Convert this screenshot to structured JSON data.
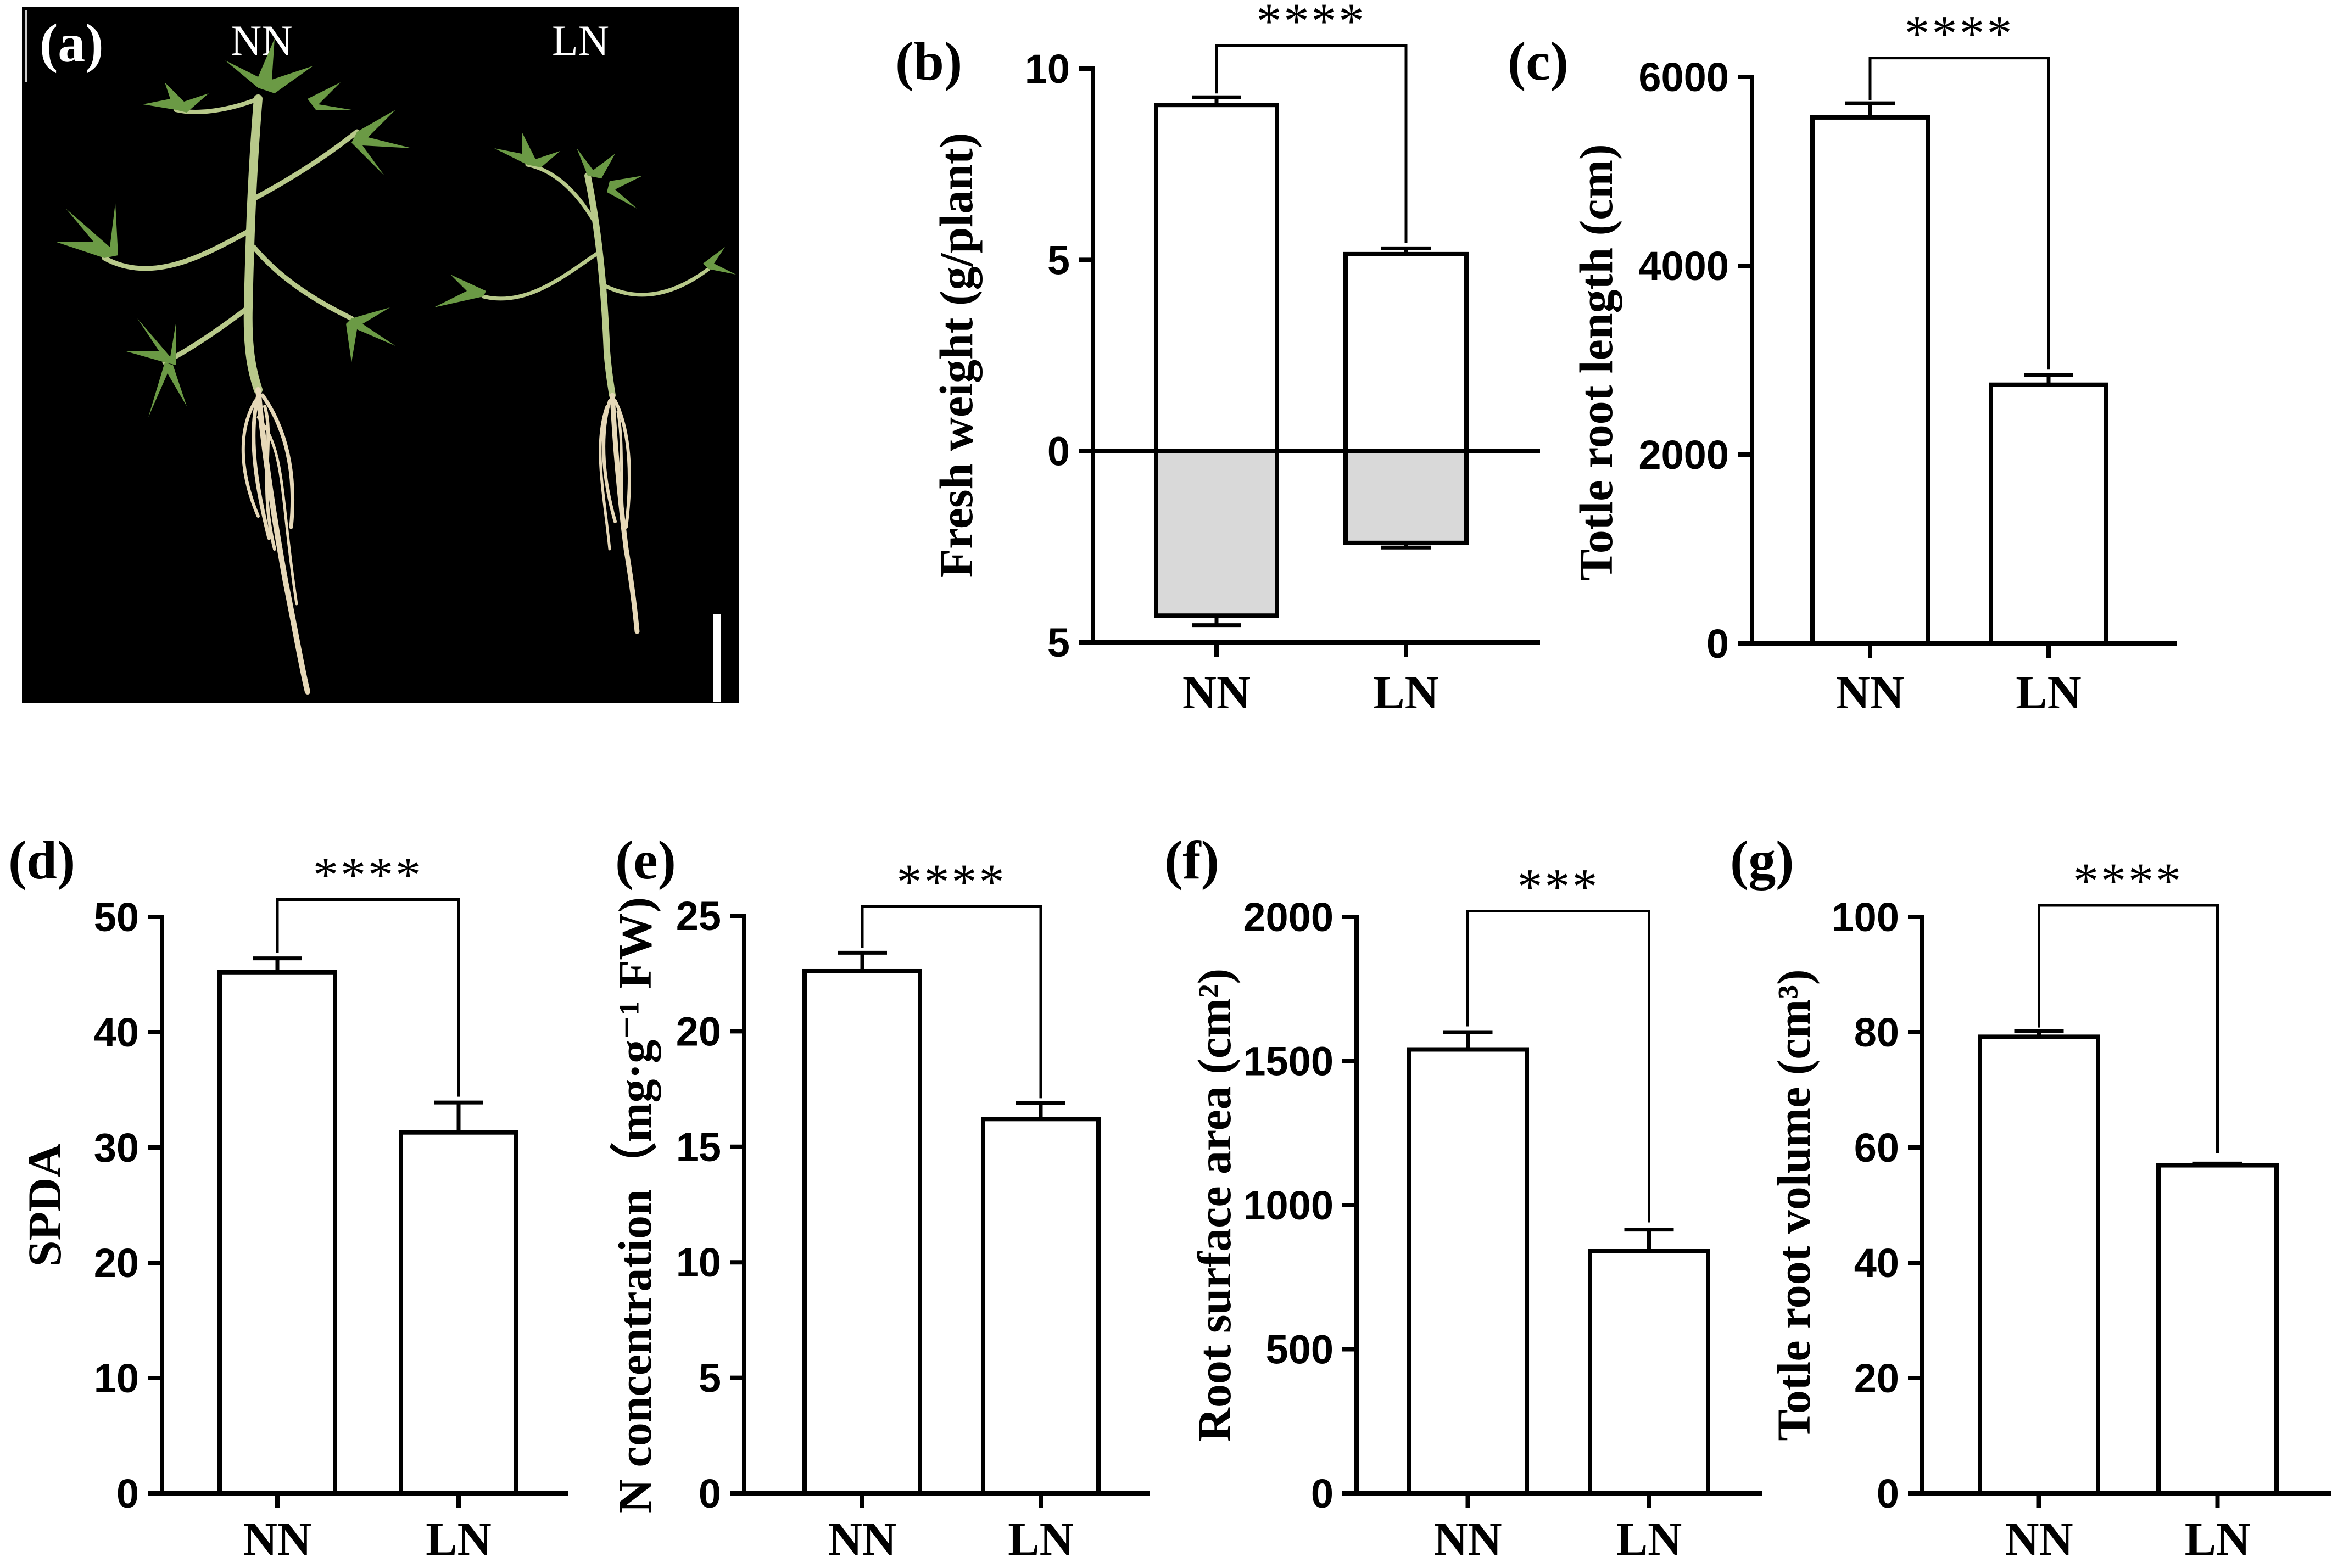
{
  "photo": {
    "panel_label": "(a)",
    "labels": [
      "NN",
      "LN"
    ]
  },
  "chart_data": [
    {
      "id": "b",
      "type": "bar",
      "panel_label": "(b)",
      "categories": [
        "NN",
        "LN"
      ],
      "series": [
        {
          "values": [
            9.05,
            5.15
          ],
          "errors": [
            0.2,
            0.15
          ],
          "color": "#ffffff"
        },
        {
          "values": [
            -4.3,
            -2.4
          ],
          "errors": [
            0.25,
            0.12
          ],
          "color": "#d9d9d9"
        }
      ],
      "ylabel": "Fresh weight (g/plant)",
      "ylim": [
        -5,
        10
      ],
      "yticks": [
        -5,
        0,
        5,
        10
      ],
      "ytick_labels": [
        "5",
        "0",
        "5",
        "10"
      ],
      "significance": "****",
      "bracket_from": [
        9.35,
        5.45
      ],
      "bracket_top": 10.6
    },
    {
      "id": "c",
      "type": "bar",
      "panel_label": "(c)",
      "categories": [
        "NN",
        "LN"
      ],
      "series": [
        {
          "values": [
            5570,
            2740
          ],
          "errors": [
            150,
            100
          ],
          "color": "#ffffff"
        }
      ],
      "ylabel": "Totle root length (cm)",
      "ylim": [
        0,
        6000
      ],
      "yticks": [
        0,
        2000,
        4000,
        6000
      ],
      "ytick_labels": [
        "0",
        "2000",
        "4000",
        "6000"
      ],
      "significance": "****",
      "bracket_from": [
        5750,
        2900
      ],
      "bracket_top": 6200
    },
    {
      "id": "d",
      "type": "bar",
      "panel_label": "(d)",
      "categories": [
        "NN",
        "LN"
      ],
      "series": [
        {
          "values": [
            45.2,
            31.3
          ],
          "errors": [
            1.2,
            2.6
          ],
          "color": "#ffffff"
        }
      ],
      "ylabel": "SPDA",
      "ylim": [
        0,
        50
      ],
      "yticks": [
        0,
        10,
        20,
        30,
        40,
        50
      ],
      "ytick_labels": [
        "0",
        "10",
        "20",
        "30",
        "40",
        "50"
      ],
      "significance": "****",
      "bracket_from": [
        46.9,
        34.4
      ],
      "bracket_top": 51.5
    },
    {
      "id": "e",
      "type": "bar",
      "panel_label": "(e)",
      "categories": [
        "NN",
        "LN"
      ],
      "series": [
        {
          "values": [
            22.6,
            16.2
          ],
          "errors": [
            0.8,
            0.7
          ],
          "color": "#ffffff"
        }
      ],
      "ylabel": "N concentration（mg·g⁻¹ FW)",
      "ylim": [
        0,
        25
      ],
      "yticks": [
        0,
        5,
        10,
        15,
        20,
        25
      ],
      "ytick_labels": [
        "0",
        "5",
        "10",
        "15",
        "20",
        "25"
      ],
      "significance": "****",
      "bracket_from": [
        23.6,
        17.1
      ],
      "bracket_top": 25.4
    },
    {
      "id": "f",
      "type": "bar",
      "panel_label": "(f)",
      "categories": [
        "NN",
        "LN"
      ],
      "series": [
        {
          "values": [
            1540,
            840
          ],
          "errors": [
            60,
            75
          ],
          "color": "#ffffff"
        }
      ],
      "ylabel": "Root surface area (cm²)",
      "ylim": [
        0,
        2000
      ],
      "yticks": [
        0,
        500,
        1000,
        1500,
        2000
      ],
      "ytick_labels": [
        "0",
        "500",
        "1000",
        "1500",
        "2000"
      ],
      "significance": "***",
      "bracket_from": [
        1620,
        940
      ],
      "bracket_top": 2020
    },
    {
      "id": "g",
      "type": "bar",
      "panel_label": "(g)",
      "categories": [
        "NN",
        "LN"
      ],
      "series": [
        {
          "values": [
            79.2,
            56.9
          ],
          "errors": [
            1.0,
            0.3
          ],
          "color": "#ffffff"
        }
      ],
      "ylabel": "Totle root volume (cm³)",
      "ylim": [
        0,
        100
      ],
      "yticks": [
        0,
        20,
        40,
        60,
        80,
        100
      ],
      "ytick_labels": [
        "0",
        "20",
        "40",
        "60",
        "80",
        "100"
      ],
      "significance": "****",
      "bracket_from": [
        80.8,
        59.0
      ],
      "bracket_top": 102
    }
  ]
}
